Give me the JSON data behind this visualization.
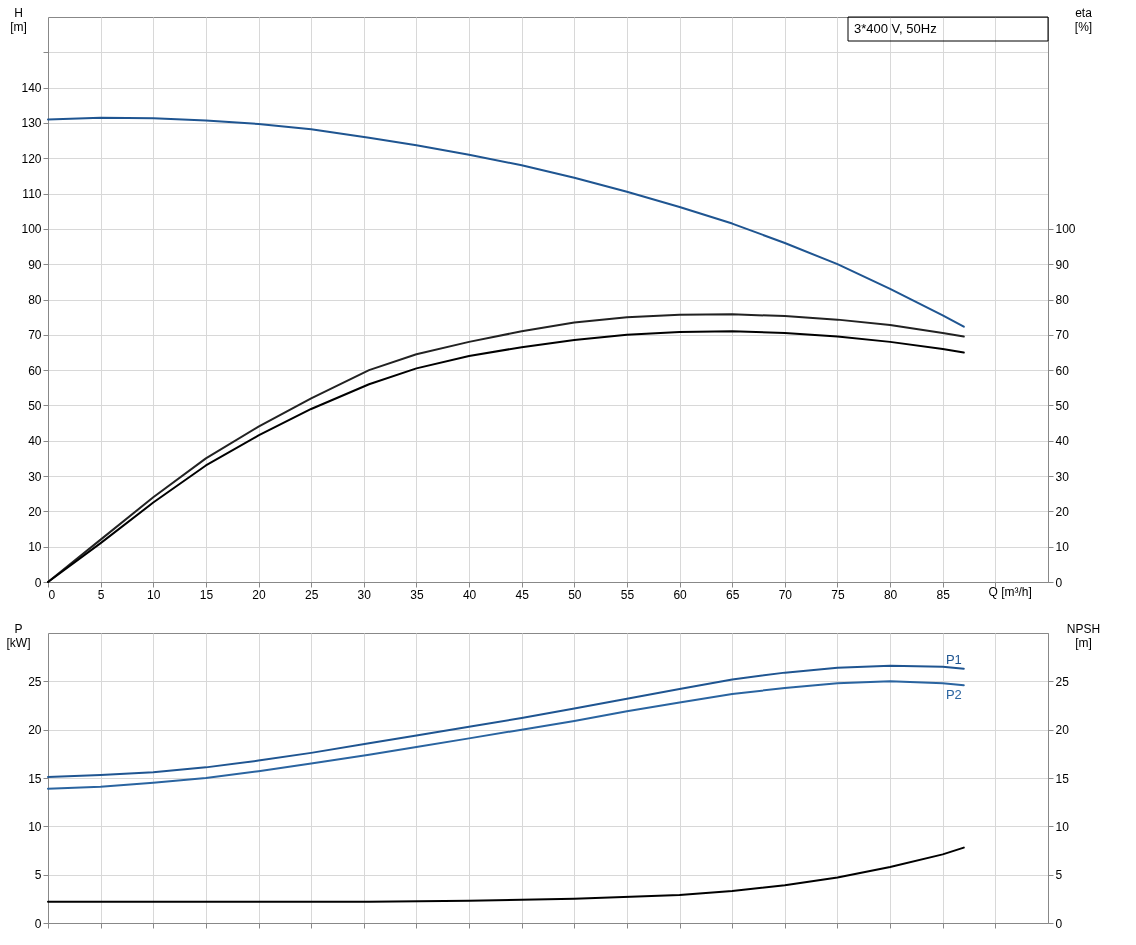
{
  "chart_data": [
    {
      "type": "line",
      "ylabel": "H [m]",
      "y2label": "eta [%]",
      "xlabel": "Q [m³/h]",
      "annotations": [
        "3*400 V, 50Hz"
      ],
      "grid": true,
      "legend": false,
      "xlim": [
        0,
        95
      ],
      "xticks": [
        0,
        5,
        10,
        15,
        20,
        25,
        30,
        35,
        40,
        45,
        50,
        55,
        60,
        65,
        70,
        75,
        80,
        85,
        {
          "value": 90,
          "label": null
        }
      ],
      "ylim": [
        0,
        160
      ],
      "yticks": [
        0,
        10,
        20,
        30,
        40,
        50,
        60,
        70,
        80,
        90,
        100,
        110,
        120,
        130,
        140,
        {
          "value": 150,
          "label": null
        }
      ],
      "y2lim": [
        0,
        160
      ],
      "y2ticks": [
        0,
        10,
        20,
        30,
        40,
        50,
        60,
        70,
        80,
        90,
        100
      ],
      "series": [
        {
          "color": "#1f5591",
          "x": [
            0,
            5,
            10,
            15,
            20,
            25,
            30.5,
            35,
            40,
            45,
            50,
            55,
            60,
            65,
            70,
            75,
            80,
            85,
            87
          ],
          "values": [
            131,
            131.5,
            131.3,
            130.7,
            129.7,
            128.2,
            125.8,
            123.7,
            121,
            118,
            114.5,
            110.5,
            106.2,
            101.5,
            96,
            90,
            83,
            75.5,
            72.3
          ]
        },
        {
          "color": "#222222",
          "axis": "y2",
          "x": [
            0,
            5,
            10,
            15,
            20,
            25,
            30.5,
            35,
            40,
            45,
            50,
            55,
            60,
            65,
            70,
            75,
            80,
            85,
            87
          ],
          "values": [
            0,
            12,
            24,
            35,
            44,
            52,
            60,
            64.5,
            68,
            71,
            73.5,
            75,
            75.7,
            75.8,
            75.3,
            74.3,
            72.8,
            70.5,
            69.5
          ]
        },
        {
          "color": "#000000",
          "axis": "y2",
          "x": [
            0,
            5,
            10,
            15,
            20,
            25,
            30.5,
            35,
            40,
            45,
            50,
            55,
            60,
            65,
            70,
            75,
            80,
            85,
            87
          ],
          "values": [
            0,
            11,
            22.5,
            33,
            41.5,
            49,
            56,
            60.5,
            64,
            66.5,
            68.5,
            70,
            70.8,
            71,
            70.5,
            69.5,
            68,
            66,
            65
          ]
        }
      ]
    },
    {
      "type": "line",
      "ylabel": "P [kW]",
      "y2label": "NPSH [m]",
      "grid": true,
      "legend": false,
      "tick_labels": "y",
      "xlim": [
        0,
        95
      ],
      "xticks": [
        0,
        5,
        10,
        15,
        20,
        25,
        30,
        35,
        40,
        45,
        50,
        55,
        60,
        65,
        70,
        75,
        80,
        85,
        90
      ],
      "ylim": [
        0,
        30
      ],
      "yticks": [
        0,
        5,
        10,
        15,
        20,
        25
      ],
      "y2lim": [
        0,
        30
      ],
      "y2ticks": [
        0,
        5,
        10,
        15,
        20,
        25
      ],
      "series": [
        {
          "name": "P1",
          "color": "#1f5591",
          "x": [
            0,
            5,
            10,
            15,
            20,
            25,
            30.5,
            35,
            40,
            45,
            50,
            55,
            60,
            65,
            70,
            75,
            80,
            85,
            87
          ],
          "values": [
            15.1,
            15.3,
            15.6,
            16.1,
            16.8,
            17.6,
            18.6,
            19.4,
            20.3,
            21.2,
            22.2,
            23.2,
            24.2,
            25.2,
            25.9,
            26.4,
            26.6,
            26.5,
            26.3
          ]
        },
        {
          "name": "P2",
          "color": "#2a64a0",
          "x": [
            0,
            5,
            10,
            15,
            20,
            25,
            30.5,
            35,
            40,
            45,
            50,
            55,
            60,
            65,
            70,
            75,
            80,
            85,
            87
          ],
          "values": [
            13.9,
            14.1,
            14.5,
            15,
            15.7,
            16.5,
            17.4,
            18.2,
            19.1,
            20,
            20.9,
            21.9,
            22.8,
            23.7,
            24.3,
            24.8,
            25,
            24.8,
            24.6
          ]
        },
        {
          "color": "#000000",
          "axis": "y2",
          "x": [
            0,
            30.5,
            40,
            50,
            60,
            65,
            70,
            75,
            80,
            85,
            87
          ],
          "values": [
            2.2,
            2.2,
            2.3,
            2.5,
            2.9,
            3.3,
            3.9,
            4.7,
            5.8,
            7.1,
            7.8
          ]
        }
      ]
    }
  ]
}
